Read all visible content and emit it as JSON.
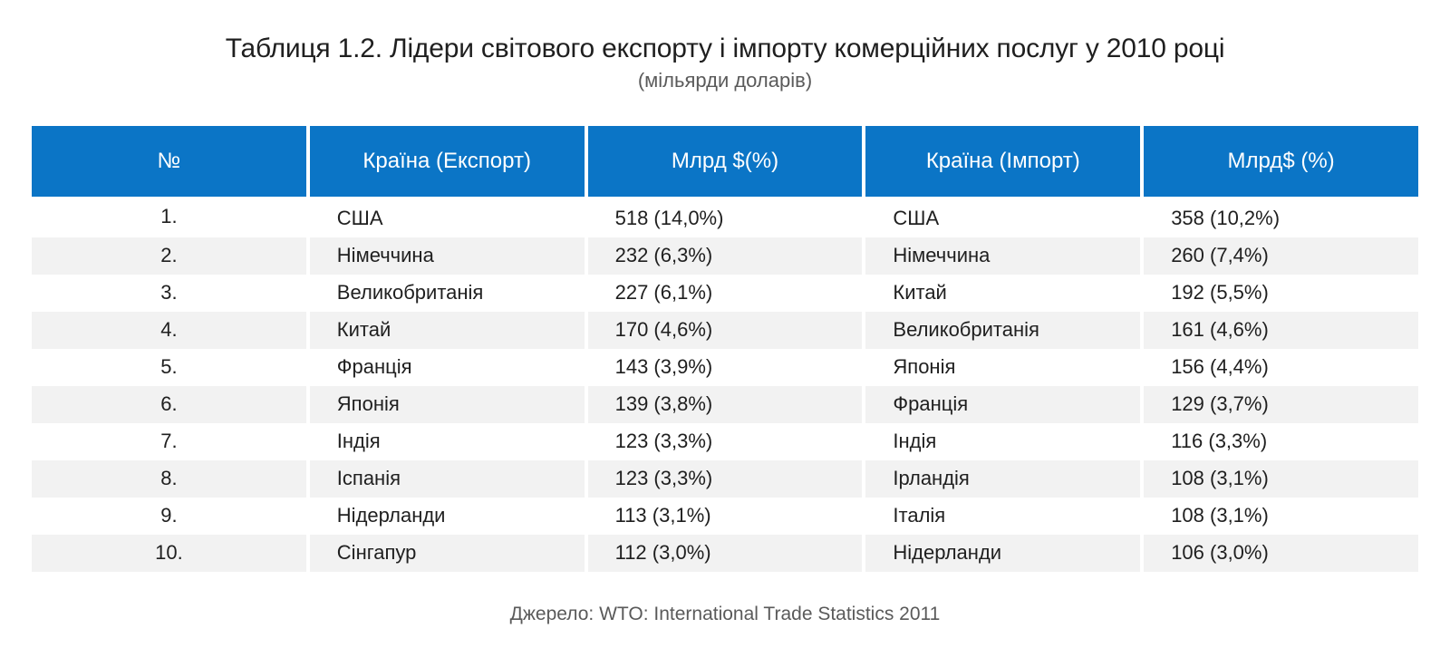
{
  "title": "Таблиця 1.2. Лідери світового експорту і імпорту комерційних послуг у 2010 році",
  "subtitle": "(мільярди доларів)",
  "table": {
    "headers": [
      "№",
      "Країна (Експорт)",
      "Млрд $(%)",
      "Країна (Імпорт)",
      "Млрд$ (%)"
    ],
    "rows": [
      {
        "num": "1.",
        "export_country": "США",
        "export_value": "518 (14,0%)",
        "import_country": "США",
        "import_value": "358 (10,2%)"
      },
      {
        "num": "2.",
        "export_country": "Німеччина",
        "export_value": "232 (6,3%)",
        "import_country": "Німеччина",
        "import_value": "260 (7,4%)"
      },
      {
        "num": "3.",
        "export_country": "Великобританія",
        "export_value": "227 (6,1%)",
        "import_country": "Китай",
        "import_value": "192 (5,5%)"
      },
      {
        "num": "4.",
        "export_country": "Китай",
        "export_value": "170 (4,6%)",
        "import_country": "Великобританія",
        "import_value": "161 (4,6%)"
      },
      {
        "num": "5.",
        "export_country": "Франція",
        "export_value": "143 (3,9%)",
        "import_country": "Японія",
        "import_value": "156 (4,4%)"
      },
      {
        "num": "6.",
        "export_country": "Японія",
        "export_value": "139 (3,8%)",
        "import_country": "Франція",
        "import_value": "129 (3,7%)"
      },
      {
        "num": "7.",
        "export_country": "Індія",
        "export_value": "123 (3,3%)",
        "import_country": "Індія",
        "import_value": "116 (3,3%)"
      },
      {
        "num": "8.",
        "export_country": "Іспанія",
        "export_value": "123 (3,3%)",
        "import_country": "Ірландія",
        "import_value": "108 (3,1%)"
      },
      {
        "num": "9.",
        "export_country": "Нідерланди",
        "export_value": "113 (3,1%)",
        "import_country": "Італія",
        "import_value": "108 (3,1%)"
      },
      {
        "num": "10.",
        "export_country": "Сінгапур",
        "export_value": "112 (3,0%)",
        "import_country": "Нідерланди",
        "import_value": "106 (3,0%)"
      }
    ]
  },
  "source": "Джерело: WTO: International Trade Statistics 2011",
  "colors": {
    "header_bg": "#0b75c6",
    "header_text": "#ffffff",
    "stripe": "#f2f2f2"
  }
}
